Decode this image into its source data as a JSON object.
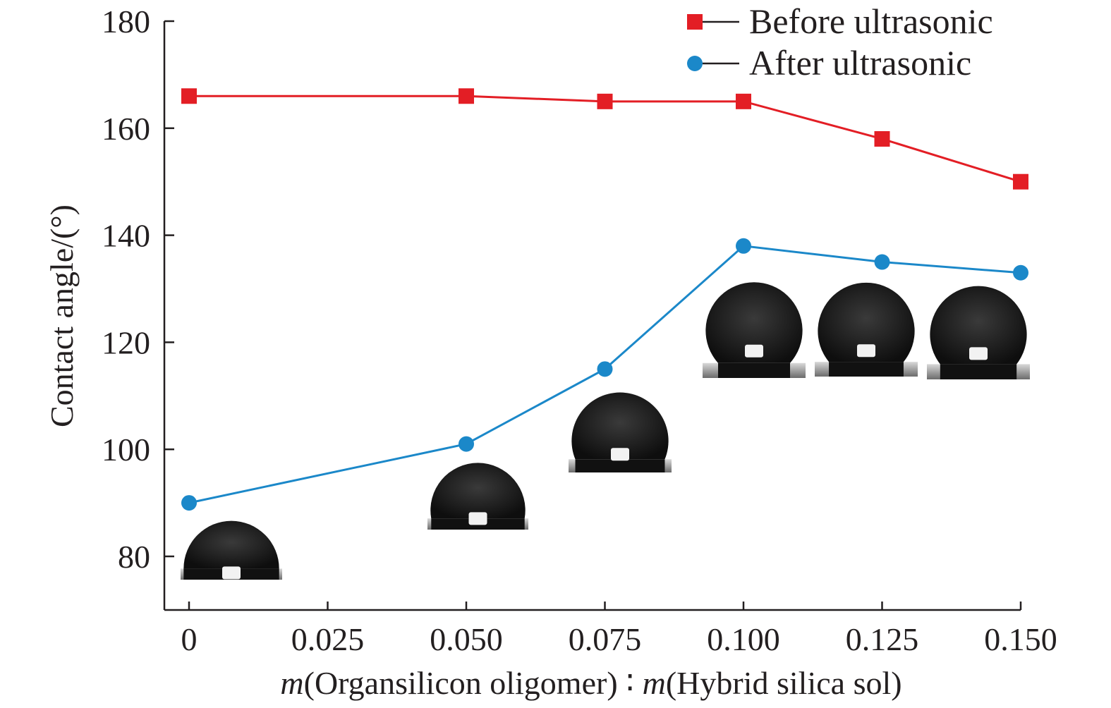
{
  "chart_data": {
    "type": "line",
    "title": "",
    "xlabel": {
      "parts": [
        {
          "text": "m",
          "italic": true
        },
        {
          "text": "(Organsilicon oligomer) ",
          "italic": false
        },
        {
          "text": "∶",
          "italic": false
        },
        {
          "text": " ",
          "italic": false
        },
        {
          "text": "m",
          "italic": true
        },
        {
          "text": "(Hybrid silica sol)",
          "italic": false
        }
      ]
    },
    "ylabel": "Contact angle/(°)",
    "xlim": [
      0,
      0.15
    ],
    "ylim": [
      70,
      180
    ],
    "x_ticks": [
      0,
      0.025,
      0.05,
      0.075,
      0.1,
      0.125,
      0.15
    ],
    "x_tick_labels": [
      "0",
      "0.025",
      "0.050",
      "0.075",
      "0.100",
      "0.125",
      "0.150"
    ],
    "y_ticks": [
      80,
      100,
      120,
      140,
      160,
      180
    ],
    "y_tick_labels": [
      "80",
      "100",
      "120",
      "140",
      "160",
      "180"
    ],
    "grid": false,
    "legend_position": "top-right",
    "series": [
      {
        "name": "Before ultrasonic",
        "marker": "square",
        "color": "#e31e25",
        "x": [
          0,
          0.05,
          0.075,
          0.1,
          0.125,
          0.15
        ],
        "y": [
          166,
          166,
          165,
          165,
          158,
          150
        ]
      },
      {
        "name": "After ultrasonic",
        "marker": "circle",
        "color": "#1b88c9",
        "x": [
          0,
          0.05,
          0.075,
          0.1,
          0.125,
          0.15
        ],
        "y": [
          90,
          101,
          115,
          138,
          135,
          133
        ]
      }
    ],
    "droplet_insets": [
      {
        "series_point": 0,
        "contact_angle": 90
      },
      {
        "series_point": 1,
        "contact_angle": 101
      },
      {
        "series_point": 2,
        "contact_angle": 115
      },
      {
        "series_point": 3,
        "contact_angle": 138
      },
      {
        "series_point": 4,
        "contact_angle": 135
      },
      {
        "series_point": 5,
        "contact_angle": 133
      }
    ]
  }
}
